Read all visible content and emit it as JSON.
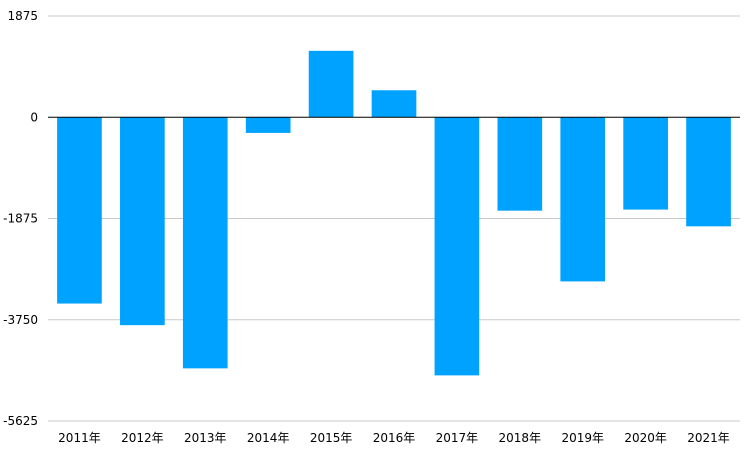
{
  "chart_data": {
    "type": "bar",
    "categories": [
      "2011年",
      "2012年",
      "2013年",
      "2014年",
      "2015年",
      "2016年",
      "2017年",
      "2018年",
      "2019年",
      "2020年",
      "2021年"
    ],
    "values": [
      -3450,
      -3850,
      -4650,
      -290,
      1230,
      500,
      -4780,
      -1730,
      -3040,
      -1710,
      -2020
    ],
    "ylim": [
      -5625,
      1875
    ],
    "yticks": [
      1875,
      0,
      -1875,
      -3750,
      -5625
    ],
    "ytick_labels": [
      "1875",
      "0",
      "-1875",
      "-3750",
      "-5625"
    ],
    "grid": true,
    "legend": "none",
    "bar_color": "#00a2ff",
    "grid_color": "#c8c8c8",
    "zero_line_color": "#000000"
  }
}
